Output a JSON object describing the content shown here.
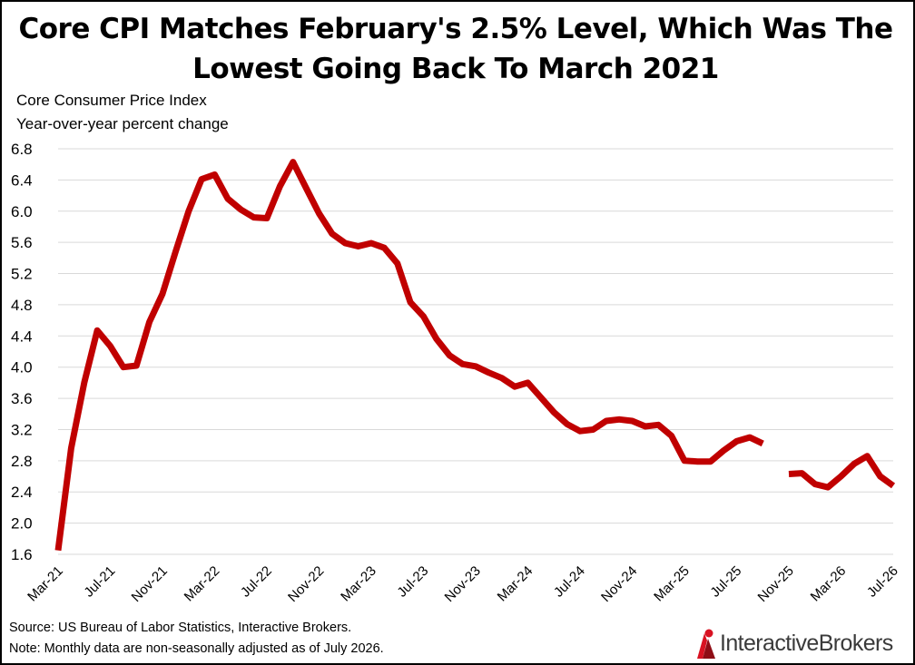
{
  "title": "Core CPI Matches February's 2.5% Level, Which Was The Lowest Going Back To March 2021",
  "subtitle_line1": "Core Consumer Price Index",
  "subtitle_line2": "Year-over-year percent change",
  "source": "Source: US Bureau of Labor Statistics, Interactive Brokers.",
  "note": "Note: Monthly data are non-seasonally adjusted as of July 2026.",
  "logo": {
    "text": "InteractiveBrokers",
    "icon": "interactive-brokers-logo-icon",
    "color": "#d81222"
  },
  "chart_data": {
    "type": "line",
    "title": "Core CPI Matches February's 2.5% Level, Which Was The Lowest Going Back To March 2021",
    "ylabel": "Core Consumer Price Index — Year-over-year percent change",
    "ylim": [
      1.6,
      6.8
    ],
    "yticks": [
      "1.6",
      "2.0",
      "2.4",
      "2.8",
      "3.2",
      "3.6",
      "4.0",
      "4.4",
      "4.8",
      "5.2",
      "5.6",
      "6.0",
      "6.4",
      "6.8"
    ],
    "xtick_labels": [
      "Mar-21",
      "Jul-21",
      "Nov-21",
      "Mar-22",
      "Jul-22",
      "Nov-22",
      "Mar-23",
      "Jul-23",
      "Nov-23",
      "Mar-24",
      "Jul-24",
      "Nov-24",
      "Mar-25",
      "Jul-25",
      "Nov-25",
      "Mar-26",
      "Jul-26"
    ],
    "grid": true,
    "line_color": "#c00000",
    "x": [
      "Mar-21",
      "Apr-21",
      "May-21",
      "Jun-21",
      "Jul-21",
      "Aug-21",
      "Sep-21",
      "Oct-21",
      "Nov-21",
      "Dec-21",
      "Jan-22",
      "Feb-22",
      "Mar-22",
      "Apr-22",
      "May-22",
      "Jun-22",
      "Jul-22",
      "Aug-22",
      "Sep-22",
      "Oct-22",
      "Nov-22",
      "Dec-22",
      "Jan-23",
      "Feb-23",
      "Mar-23",
      "Apr-23",
      "May-23",
      "Jun-23",
      "Jul-23",
      "Aug-23",
      "Sep-23",
      "Oct-23",
      "Nov-23",
      "Dec-23",
      "Jan-24",
      "Feb-24",
      "Mar-24",
      "Apr-24",
      "May-24",
      "Jun-24",
      "Jul-24",
      "Aug-24",
      "Sep-24",
      "Oct-24",
      "Nov-24",
      "Dec-24",
      "Jan-25",
      "Feb-25",
      "Mar-25",
      "Apr-25",
      "May-25",
      "Jun-25",
      "Jul-25",
      "Aug-25",
      "Sep-25",
      "Oct-25",
      "Nov-25",
      "Dec-25",
      "Jan-26",
      "Feb-26",
      "Mar-26",
      "Apr-26",
      "May-26",
      "Jun-26",
      "Jul-26"
    ],
    "series": [
      {
        "values": [
          1.65,
          2.96,
          3.8,
          4.47,
          4.27,
          4.0,
          4.02,
          4.58,
          4.94,
          5.48,
          6.0,
          6.41,
          6.47,
          6.16,
          6.02,
          5.92,
          5.91,
          6.32,
          6.63,
          6.3,
          5.97,
          5.71,
          5.59,
          5.55,
          5.59,
          5.53,
          5.33,
          4.83,
          4.65,
          4.36,
          4.15,
          4.04,
          4.01,
          3.93,
          3.86,
          3.75,
          3.8,
          3.61,
          3.42,
          3.27,
          3.18,
          3.2,
          3.31,
          3.33,
          3.31,
          3.24,
          3.26,
          3.12,
          2.8,
          2.79,
          2.79,
          2.93,
          3.05,
          3.1,
          3.02,
          null,
          2.63,
          2.64,
          2.5,
          2.46,
          2.6,
          2.76,
          2.86,
          2.6,
          2.48
        ]
      }
    ]
  }
}
